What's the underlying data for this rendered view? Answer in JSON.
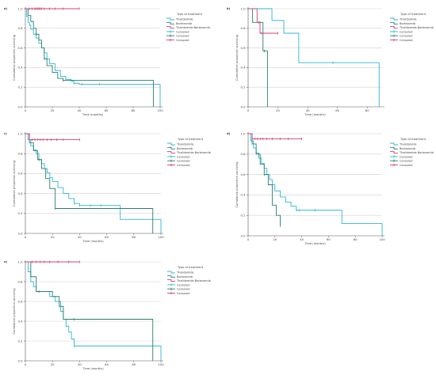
{
  "chart_data": [
    {
      "type": "line",
      "panel_label": "a)",
      "xlabel": "Time (months)",
      "ylabel": "Cumulative proportion surviving",
      "xlim": [
        0,
        100
      ],
      "ylim": [
        0,
        1
      ],
      "xticks": [
        0,
        20,
        40,
        60,
        80,
        100
      ],
      "yticks": [
        0.0,
        0.2,
        0.4,
        0.6,
        0.8,
        1.0
      ],
      "legend": {
        "title": "Type of treatment",
        "position": "right",
        "items": [
          {
            "label": "Thalidomide",
            "color": "#2fb6d6",
            "kind": "line"
          },
          {
            "label": "Bortezomib",
            "color": "#2a7f6b",
            "kind": "line"
          },
          {
            "label": "Thalidomide-Bortezomib",
            "color": "#d0407a",
            "kind": "line"
          },
          {
            "label": "Censored",
            "color": "#2fb6d6",
            "kind": "censor"
          },
          {
            "label": "Censored",
            "color": "#2a7f6b",
            "kind": "censor"
          },
          {
            "label": "Censored",
            "color": "#d0407a",
            "kind": "censor"
          }
        ]
      },
      "series": [
        {
          "name": "Thalidomide",
          "color": "#2fb6d6",
          "x": [
            0,
            1,
            2,
            3,
            4,
            6,
            8,
            10,
            12,
            14,
            16,
            18,
            22,
            26,
            30,
            34,
            36,
            40,
            100
          ],
          "y": [
            1.0,
            0.92,
            0.86,
            0.83,
            0.79,
            0.74,
            0.7,
            0.65,
            0.6,
            0.55,
            0.49,
            0.44,
            0.37,
            0.31,
            0.28,
            0.26,
            0.24,
            0.23,
            0.0
          ],
          "censored": [
            [
              36,
              0.24
            ],
            [
              42,
              0.23
            ],
            [
              55,
              0.23
            ]
          ]
        },
        {
          "name": "Bortezomib",
          "color": "#2a7f6b",
          "x": [
            0,
            2,
            4,
            6,
            8,
            10,
            12,
            14,
            16,
            20,
            24,
            28,
            95
          ],
          "y": [
            1.0,
            0.93,
            0.87,
            0.8,
            0.74,
            0.68,
            0.6,
            0.49,
            0.42,
            0.35,
            0.29,
            0.27,
            0.0
          ],
          "censored": [
            [
              8,
              0.74
            ],
            [
              14,
              0.49
            ],
            [
              28,
              0.27
            ]
          ]
        },
        {
          "name": "Thalidomide-Bortezomib",
          "color": "#d0407a",
          "x": [
            0,
            40
          ],
          "y": [
            1.0,
            1.0
          ],
          "censored": [
            [
              3,
              1.0
            ],
            [
              5,
              1.0
            ],
            [
              7,
              1.0
            ],
            [
              8,
              1.0
            ],
            [
              9,
              1.0
            ],
            [
              10,
              1.0
            ],
            [
              11,
              1.0
            ],
            [
              12,
              1.0
            ],
            [
              14,
              1.0
            ],
            [
              18,
              1.0
            ],
            [
              22,
              1.0
            ],
            [
              28,
              1.0
            ],
            [
              40,
              1.0
            ]
          ]
        }
      ]
    },
    {
      "type": "line",
      "panel_label": "b)",
      "xlabel": "Time (months)",
      "ylabel": "Cumulative proportion surviving",
      "xlim": [
        0,
        90
      ],
      "ylim": [
        0,
        1
      ],
      "xticks": [
        0,
        20,
        40,
        60,
        80
      ],
      "yticks": [
        0.0,
        0.2,
        0.4,
        0.6,
        0.8,
        1.0
      ],
      "legend": {
        "title": "Type of treatment",
        "position": "right",
        "items": [
          {
            "label": "Thalidomide",
            "color": "#2fb6d6",
            "kind": "line"
          },
          {
            "label": "Bortezomib",
            "color": "#2a7f6b",
            "kind": "line"
          },
          {
            "label": "Thalidomide-Bortezomib",
            "color": "#d0407a",
            "kind": "line"
          },
          {
            "label": "Censored",
            "color": "#2fb6d6",
            "kind": "censor"
          },
          {
            "label": "Censored",
            "color": "#2a7f6b",
            "kind": "censor"
          },
          {
            "label": "Censored",
            "color": "#d0407a",
            "kind": "censor"
          }
        ]
      },
      "series": [
        {
          "name": "Thalidomide",
          "color": "#2fb6d6",
          "x": [
            0,
            10,
            16,
            24,
            34,
            88
          ],
          "y": [
            1.0,
            1.0,
            0.88,
            0.75,
            0.45,
            0.0
          ],
          "censored": [
            [
              57,
              0.45
            ]
          ]
        },
        {
          "name": "Bortezomib",
          "color": "#2a7f6b",
          "x": [
            0,
            3,
            10,
            13
          ],
          "y": [
            1.0,
            0.86,
            0.57,
            0.0
          ],
          "censored": [
            [
              8,
              0.86
            ],
            [
              11,
              0.57
            ]
          ]
        },
        {
          "name": "Thalidomide-Bortezomib",
          "color": "#d0407a",
          "x": [
            0,
            6,
            8,
            20
          ],
          "y": [
            1.0,
            0.86,
            0.75,
            0.75
          ],
          "censored": [
            [
              7,
              0.86
            ],
            [
              9,
              0.75
            ],
            [
              20,
              0.75
            ]
          ]
        }
      ]
    },
    {
      "type": "line",
      "panel_label": "c)",
      "xlabel": "Time (months)",
      "ylabel": "Cumulative proportion surviving",
      "xlim": [
        0,
        100
      ],
      "ylim": [
        0,
        1
      ],
      "xticks": [
        0,
        20,
        40,
        60,
        80,
        100
      ],
      "yticks": [
        0.0,
        0.2,
        0.4,
        0.6,
        0.8,
        1.0
      ],
      "legend": {
        "title": "Type of treatment",
        "position": "right",
        "items": [
          {
            "label": "Thalidomide",
            "color": "#2fb6d6",
            "kind": "line"
          },
          {
            "label": "Bortezomib",
            "color": "#2a7f6b",
            "kind": "line"
          },
          {
            "label": "Thalidomide-Bortezomib",
            "color": "#d0407a",
            "kind": "line"
          },
          {
            "label": "Censored",
            "color": "#2fb6d6",
            "kind": "censor"
          },
          {
            "label": "Censored",
            "color": "#2a7f6b",
            "kind": "censor"
          },
          {
            "label": "Censored",
            "color": "#d0407a",
            "kind": "censor"
          }
        ]
      },
      "series": [
        {
          "name": "Thalidomide",
          "color": "#2fb6d6",
          "x": [
            0,
            2,
            4,
            6,
            8,
            10,
            12,
            14,
            16,
            18,
            20,
            24,
            28,
            32,
            36,
            40,
            70,
            97,
            100
          ],
          "y": [
            1.0,
            0.94,
            0.88,
            0.84,
            0.8,
            0.74,
            0.7,
            0.65,
            0.61,
            0.56,
            0.52,
            0.46,
            0.4,
            0.35,
            0.3,
            0.28,
            0.14,
            0.14,
            0.0
          ],
          "censored": [
            [
              36,
              0.3
            ],
            [
              40,
              0.28
            ],
            [
              48,
              0.28
            ],
            [
              56,
              0.28
            ]
          ]
        },
        {
          "name": "Bortezomib",
          "color": "#2a7f6b",
          "x": [
            0,
            3,
            6,
            9,
            12,
            15,
            18,
            22,
            94
          ],
          "y": [
            1.0,
            0.91,
            0.83,
            0.74,
            0.65,
            0.55,
            0.45,
            0.25,
            0.0
          ],
          "censored": [
            [
              10,
              0.74
            ],
            [
              22,
              0.25
            ]
          ]
        },
        {
          "name": "Thalidomide-Bortezomib",
          "color": "#d0407a",
          "x": [
            0,
            3,
            40
          ],
          "y": [
            1.0,
            0.94,
            0.94
          ],
          "censored": [
            [
              5,
              0.94
            ],
            [
              7,
              0.94
            ],
            [
              9,
              0.94
            ],
            [
              11,
              0.94
            ],
            [
              13,
              0.94
            ],
            [
              16,
              0.94
            ],
            [
              19,
              0.94
            ],
            [
              23,
              0.94
            ],
            [
              28,
              0.94
            ],
            [
              40,
              0.94
            ]
          ]
        }
      ]
    },
    {
      "type": "line",
      "panel_label": "d)",
      "xlabel": "Time (months)",
      "ylabel": "Cumulative proportion surviving",
      "xlim": [
        0,
        100
      ],
      "ylim": [
        0,
        1
      ],
      "xticks": [
        0,
        20,
        40,
        60,
        80,
        100
      ],
      "yticks": [
        0.0,
        0.2,
        0.4,
        0.6,
        0.8,
        1.0
      ],
      "legend": {
        "title": "Type of treatment",
        "position": "right",
        "items": [
          {
            "label": "Thalidomide",
            "color": "#2fb6d6",
            "kind": "line"
          },
          {
            "label": "Bortezomib",
            "color": "#2a7f6b",
            "kind": "line"
          },
          {
            "label": "Thalidomide-Bortezomib",
            "color": "#d0407a",
            "kind": "line"
          },
          {
            "label": "Censored",
            "color": "#2fb6d6",
            "kind": "censor"
          },
          {
            "label": "Censored",
            "color": "#2a7f6b",
            "kind": "censor"
          },
          {
            "label": "Censored",
            "color": "#d0407a",
            "kind": "censor"
          }
        ]
      },
      "series": [
        {
          "name": "Thalidomide",
          "color": "#2fb6d6",
          "x": [
            0,
            2,
            4,
            6,
            8,
            10,
            12,
            14,
            16,
            18,
            20,
            24,
            28,
            32,
            36,
            50,
            70,
            98,
            100
          ],
          "y": [
            1.0,
            0.93,
            0.86,
            0.81,
            0.76,
            0.71,
            0.66,
            0.6,
            0.55,
            0.5,
            0.44,
            0.38,
            0.33,
            0.29,
            0.25,
            0.25,
            0.12,
            0.12,
            0.0
          ],
          "censored": [
            [
              36,
              0.25
            ],
            [
              38,
              0.25
            ],
            [
              50,
              0.25
            ]
          ]
        },
        {
          "name": "Bortezomib",
          "color": "#2a7f6b",
          "x": [
            0,
            3,
            6,
            9,
            12,
            15,
            18,
            21,
            24
          ],
          "y": [
            1.0,
            0.9,
            0.8,
            0.7,
            0.6,
            0.5,
            0.3,
            0.2,
            0.1
          ],
          "censored": [
            [
              12,
              0.6
            ],
            [
              24,
              0.1
            ]
          ]
        },
        {
          "name": "Thalidomide-Bortezomib",
          "color": "#d0407a",
          "x": [
            0,
            3,
            40
          ],
          "y": [
            1.0,
            0.95,
            0.95
          ],
          "censored": [
            [
              5,
              0.95
            ],
            [
              7,
              0.95
            ],
            [
              9,
              0.95
            ],
            [
              11,
              0.95
            ],
            [
              14,
              0.95
            ],
            [
              18,
              0.95
            ],
            [
              24,
              0.95
            ],
            [
              30,
              0.95
            ],
            [
              40,
              0.95
            ]
          ]
        }
      ]
    },
    {
      "type": "line",
      "panel_label": "e)",
      "xlabel": "Time (months)",
      "ylabel": "Cumulative proportion surviving",
      "xlim": [
        0,
        100
      ],
      "ylim": [
        0,
        1
      ],
      "xticks": [
        0,
        20,
        40,
        60,
        80,
        100
      ],
      "yticks": [
        0.0,
        0.2,
        0.4,
        0.6,
        0.8,
        1.0
      ],
      "legend": {
        "title": "Type of treatment",
        "position": "right",
        "items": [
          {
            "label": "Thalidomide",
            "color": "#2fb6d6",
            "kind": "line"
          },
          {
            "label": "Bortezomib",
            "color": "#2a7f6b",
            "kind": "line"
          },
          {
            "label": "Thalidomide-Bortezomib",
            "color": "#d0407a",
            "kind": "line"
          },
          {
            "label": "Censored",
            "color": "#2fb6d6",
            "kind": "censor"
          },
          {
            "label": "Censored",
            "color": "#2a7f6b",
            "kind": "censor"
          },
          {
            "label": "Censored",
            "color": "#d0407a",
            "kind": "censor"
          }
        ]
      },
      "series": [
        {
          "name": "Thalidomide",
          "color": "#2fb6d6",
          "x": [
            0,
            2,
            4,
            6,
            8,
            10,
            14,
            18,
            22,
            26,
            28,
            30,
            32,
            34,
            36,
            97,
            100
          ],
          "y": [
            1.0,
            0.9,
            0.8,
            0.75,
            0.7,
            0.7,
            0.7,
            0.65,
            0.6,
            0.5,
            0.42,
            0.35,
            0.29,
            0.22,
            0.15,
            0.15,
            0.0
          ],
          "censored": [
            [
              36,
              0.15
            ]
          ]
        },
        {
          "name": "Bortezomib",
          "color": "#2a7f6b",
          "x": [
            0,
            4,
            8,
            12,
            16,
            20,
            25,
            28,
            36,
            94
          ],
          "y": [
            1.0,
            0.85,
            0.7,
            0.7,
            0.7,
            0.65,
            0.55,
            0.42,
            0.42,
            0.0
          ],
          "censored": [
            [
              10,
              0.7
            ],
            [
              36,
              0.42
            ]
          ]
        },
        {
          "name": "Thalidomide-Bortezomib",
          "color": "#d0407a",
          "x": [
            0,
            40
          ],
          "y": [
            1.0,
            1.0
          ],
          "censored": [
            [
              5,
              1.0
            ],
            [
              8,
              1.0
            ],
            [
              11,
              1.0
            ],
            [
              14,
              1.0
            ],
            [
              18,
              1.0
            ],
            [
              24,
              1.0
            ],
            [
              32,
              1.0
            ],
            [
              40,
              1.0
            ]
          ]
        }
      ]
    }
  ]
}
